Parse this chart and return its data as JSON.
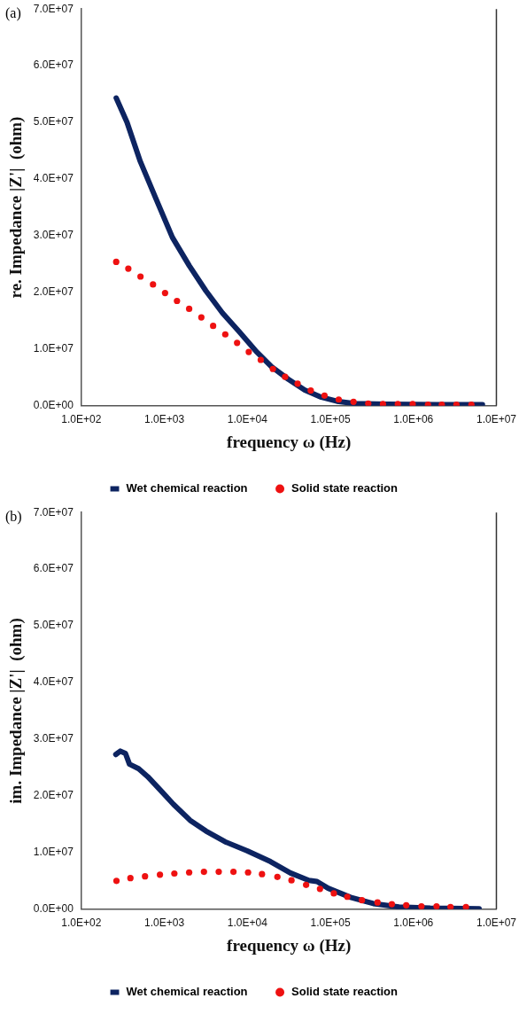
{
  "chart_data": [
    {
      "type": "line",
      "annotations": [
        "(a)"
      ],
      "xlabel": "frequency ω (Hz)",
      "ylabel": "re. Impedance |Z'|  (ohm)",
      "log": "x",
      "grid": false,
      "legend": "bottom",
      "xlim": [
        100,
        10000000
      ],
      "xticks": [
        {
          "value": 100,
          "label": "1.0E+02"
        },
        {
          "value": 1000,
          "label": "1.0E+03"
        },
        {
          "value": 10000,
          "label": "1.0E+04"
        },
        {
          "value": 100000,
          "label": "1.0E+05"
        },
        {
          "value": 1000000,
          "label": "1.0E+06"
        },
        {
          "value": 10000000,
          "label": "1.0E+07"
        }
      ],
      "ylim": [
        0,
        70000000
      ],
      "yticks": [
        {
          "value": 0,
          "label": "0.0E+00"
        },
        {
          "value": 10000000,
          "label": "1.0E+07"
        },
        {
          "value": 20000000,
          "label": "2.0E+07"
        },
        {
          "value": 30000000,
          "label": "3.0E+07"
        },
        {
          "value": 40000000,
          "label": "4.0E+07"
        },
        {
          "value": 50000000,
          "label": "5.0E+07"
        },
        {
          "value": 60000000,
          "label": "6.0E+07"
        },
        {
          "value": 70000000,
          "label": "7.0E+07"
        }
      ],
      "series": [
        {
          "name": "Wet chemical reaction",
          "type": "line",
          "marker": "none",
          "line_style": "solid",
          "color": "#0d2461",
          "x": [
            263,
            355,
            513,
            800,
            1250,
            2000,
            3160,
            5000,
            7940,
            12600,
            19500,
            31000,
            49000,
            78000,
            120000,
            195000,
            480000,
            1900000,
            6800000
          ],
          "values": [
            54300000,
            50000000,
            43100000,
            36400000,
            29700000,
            24700000,
            20300000,
            16400000,
            13100000,
            9700000,
            6900000,
            4700000,
            2800000,
            1500000,
            800000,
            400000,
            300000,
            200000,
            200000
          ]
        },
        {
          "name": "Solid state reaction",
          "type": "scatter",
          "marker": "circle",
          "color": "#ee1111",
          "x": [
            263,
            368,
            516,
            730,
            1020,
            1420,
            1990,
            2790,
            3870,
            5420,
            7520,
            10400,
            14500,
            20300,
            28500,
            40300,
            58000,
            85000,
            126000,
            190000,
            286000,
            430000,
            650000,
            980000,
            1500000,
            2200000,
            3300000,
            5000000
          ],
          "values": [
            25400000,
            24200000,
            22800000,
            21400000,
            19900000,
            18500000,
            17100000,
            15600000,
            14100000,
            12600000,
            11100000,
            9500000,
            8100000,
            6500000,
            5100000,
            3900000,
            2700000,
            1800000,
            1100000,
            700000,
            400000,
            300000,
            300000,
            300000,
            200000,
            200000,
            200000,
            200000
          ]
        }
      ]
    },
    {
      "type": "line",
      "annotations": [
        "(b)"
      ],
      "xlabel": "frequency ω (Hz)",
      "ylabel": "im. Impedance |Z'|  (ohm)",
      "log": "x",
      "grid": false,
      "legend": "bottom",
      "xlim": [
        100,
        10000000
      ],
      "xticks": [
        {
          "value": 100,
          "label": "1.0E+02"
        },
        {
          "value": 1000,
          "label": "1.0E+03"
        },
        {
          "value": 10000,
          "label": "1.0E+04"
        },
        {
          "value": 100000,
          "label": "1.0E+05"
        },
        {
          "value": 1000000,
          "label": "1.0E+06"
        },
        {
          "value": 10000000,
          "label": "1.0E+07"
        }
      ],
      "ylim": [
        0,
        70000000
      ],
      "yticks": [
        {
          "value": 0,
          "label": "0.0E+00"
        },
        {
          "value": 10000000,
          "label": "1.0E+07"
        },
        {
          "value": 20000000,
          "label": "2.0E+07"
        },
        {
          "value": 30000000,
          "label": "3.0E+07"
        },
        {
          "value": 40000000,
          "label": "4.0E+07"
        },
        {
          "value": 50000000,
          "label": "5.0E+07"
        },
        {
          "value": 60000000,
          "label": "6.0E+07"
        },
        {
          "value": 70000000,
          "label": "7.0E+07"
        }
      ],
      "series": [
        {
          "name": "Wet chemical reaction",
          "type": "line",
          "marker": "none",
          "line_style": "solid",
          "color": "#0d2461",
          "x": [
            260,
            295,
            340,
            380,
            490,
            630,
            910,
            1290,
            2040,
            3170,
            5400,
            10000,
            19000,
            33000,
            55000,
            69000,
            94000,
            175000,
            330000,
            670000,
            1600000,
            6200000
          ],
          "values": [
            27300000,
            27900000,
            27500000,
            25600000,
            24800000,
            23400000,
            20900000,
            18500000,
            15700000,
            13800000,
            11900000,
            10300000,
            8400000,
            6400000,
            5100000,
            4900000,
            3700000,
            2100000,
            1000000,
            400000,
            200000,
            100000
          ]
        },
        {
          "name": "Solid state reaction",
          "type": "scatter",
          "marker": "circle",
          "color": "#ee1111",
          "x": [
            265,
            390,
            585,
            885,
            1320,
            1990,
            3000,
            4520,
            6800,
            10200,
            15000,
            23000,
            34000,
            51000,
            75000,
            110000,
            160000,
            240000,
            370000,
            550000,
            820000,
            1250000,
            1900000,
            2800000,
            4300000
          ],
          "values": [
            5000000,
            5500000,
            5800000,
            6100000,
            6300000,
            6500000,
            6600000,
            6600000,
            6600000,
            6500000,
            6200000,
            5700000,
            5100000,
            4300000,
            3600000,
            2800000,
            2200000,
            1600000,
            1200000,
            900000,
            700000,
            500000,
            500000,
            400000,
            400000
          ]
        }
      ]
    }
  ]
}
